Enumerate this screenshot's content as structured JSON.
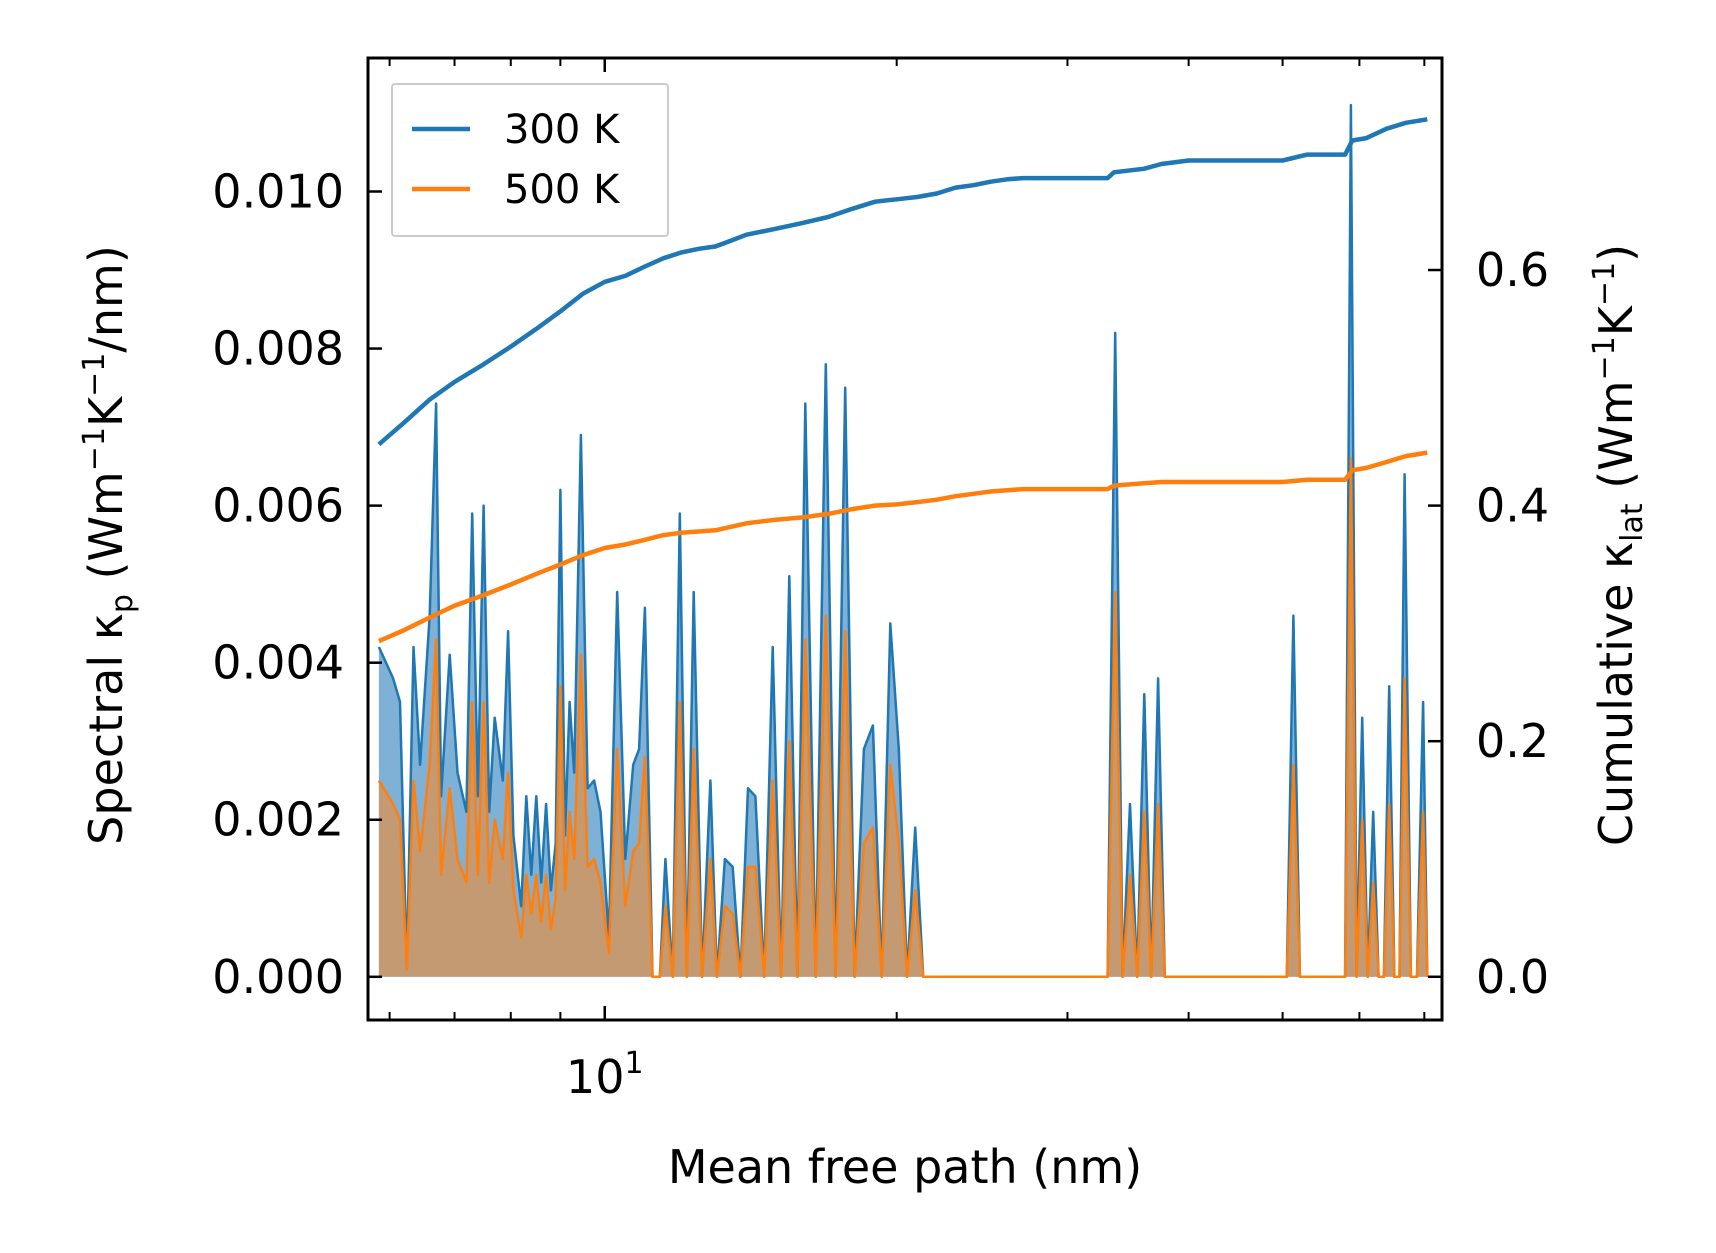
{
  "chart_data": {
    "type": "line",
    "xlabel": "Mean free path (nm)",
    "x_scale": "log",
    "xlim": [
      5.7,
      73
    ],
    "x_tick_labels": [
      {
        "value": 10,
        "base": "10",
        "exponent": "1"
      }
    ],
    "left_axis": {
      "label_parts": [
        "Spectral κ",
        "p",
        " (Wm",
        "−1",
        "K",
        "−1",
        "/nm)"
      ],
      "ylim": [
        -0.00055,
        0.0117
      ],
      "ticks": [
        "0.000",
        "0.002",
        "0.004",
        "0.006",
        "0.008",
        "0.010"
      ],
      "tick_values": [
        0,
        0.002,
        0.004,
        0.006,
        0.008,
        0.01
      ]
    },
    "right_axis": {
      "label_parts": [
        "Cumulative κ",
        "lat",
        " (Wm",
        "−1",
        "K",
        "−1",
        ")"
      ],
      "ylim": [
        -0.0367,
        0.78
      ],
      "ticks": [
        "0.0",
        "0.2",
        "0.4",
        "0.6"
      ],
      "tick_values": [
        0,
        0.2,
        0.4,
        0.6
      ]
    },
    "legend": {
      "position": "upper-left",
      "entries": [
        {
          "label": "300 K",
          "color": "#1f77b4"
        },
        {
          "label": "500 K",
          "color": "#ff7f0e"
        }
      ]
    },
    "colors": {
      "series_300": "#1f77b4",
      "series_500": "#ff7f0e",
      "fill_300": "#7fb0d6",
      "fill_500": "#c49a72"
    },
    "spectral_300": {
      "x": [
        5.85,
        6.05,
        6.15,
        6.25,
        6.35,
        6.45,
        6.6,
        6.7,
        6.78,
        6.92,
        7.05,
        7.2,
        7.3,
        7.4,
        7.5,
        7.6,
        7.7,
        7.85,
        7.95,
        8.05,
        8.2,
        8.3,
        8.4,
        8.5,
        8.6,
        8.7,
        8.8,
        8.9,
        9.0,
        9.1,
        9.2,
        9.3,
        9.45,
        9.6,
        9.75,
        9.9,
        10.1,
        10.3,
        10.5,
        10.7,
        10.85,
        11.0,
        11.2,
        11.4,
        11.55,
        11.75,
        11.95,
        12.15,
        12.35,
        12.6,
        12.85,
        13.05,
        13.3,
        13.55,
        13.8,
        14.05,
        14.3,
        14.6,
        14.9,
        15.2,
        15.5,
        15.8,
        16.1,
        16.5,
        16.9,
        17.3,
        17.7,
        18.1,
        18.5,
        18.9,
        19.3,
        19.7,
        20.1,
        20.5,
        20.9,
        21.3,
        21.7,
        22.2,
        22.6,
        23.0,
        23.4,
        23.8,
        24.2,
        24.7,
        25.2,
        25.7,
        26.2,
        26.7,
        27.2,
        27.8,
        28.4,
        29.0,
        33.0,
        33.6,
        34.2,
        34.8,
        35.4,
        36.0,
        36.6,
        37.2,
        37.8,
        38.4,
        39.0,
        50.5,
        51.3,
        52.1,
        58.0,
        58.8,
        59.6,
        60.4,
        61.2,
        62.0,
        62.8,
        63.6,
        64.4,
        65.2,
        66.0,
        66.8,
        67.8,
        68.8,
        69.8,
        70.5
      ],
      "y": [
        0.0042,
        0.0038,
        0.0035,
        0.0001,
        0.0042,
        0.0027,
        0.0046,
        0.0073,
        0.0023,
        0.0041,
        0.0026,
        0.0021,
        0.0059,
        0.0023,
        0.006,
        0.0021,
        0.0033,
        0.0025,
        0.0044,
        0.0018,
        0.0009,
        0.0023,
        0.0013,
        0.0023,
        0.0012,
        0.0022,
        0.0011,
        0.0017,
        0.0062,
        0.0018,
        0.0035,
        0.0026,
        0.0069,
        0.0024,
        0.0025,
        0.0021,
        0.0005,
        0.0049,
        0.0015,
        0.0027,
        0.0029,
        0.0047,
        0.0,
        0.0,
        0.0015,
        0.0,
        0.0059,
        0.0,
        0.0049,
        0.0,
        0.0025,
        0.0,
        0.0015,
        0.0014,
        0.0,
        0.0024,
        0.0023,
        0.0,
        0.0042,
        0.0,
        0.0051,
        0.0,
        0.0073,
        0.0,
        0.0078,
        0.0,
        0.0075,
        0.0,
        0.0029,
        0.0032,
        0.0,
        0.0045,
        0.0029,
        0.0,
        0.0019,
        0.0,
        0.0,
        0.0,
        0.0,
        0.0,
        0.0,
        0.0,
        0.0,
        0.0,
        0.0,
        0.0,
        0.0,
        0.0,
        0.0,
        0.0,
        0.0,
        0.0,
        0.0,
        0.0082,
        0.0,
        0.0022,
        0.0,
        0.0036,
        0.0,
        0.0038,
        0.0,
        0.0,
        0.0,
        0.0,
        0.0046,
        0.0,
        0.0,
        0.0111,
        0.0,
        0.0033,
        0.0,
        0.0021,
        0.0,
        0.0,
        0.0037,
        0.0,
        0.0,
        0.0064,
        0.0,
        0.0,
        0.0035,
        0.0
      ]
    },
    "spectral_500": {
      "x": [
        5.85,
        6.05,
        6.15,
        6.25,
        6.35,
        6.45,
        6.6,
        6.7,
        6.78,
        6.92,
        7.05,
        7.2,
        7.3,
        7.4,
        7.5,
        7.6,
        7.7,
        7.85,
        7.95,
        8.05,
        8.2,
        8.3,
        8.4,
        8.5,
        8.6,
        8.7,
        8.8,
        8.9,
        9.0,
        9.1,
        9.2,
        9.3,
        9.45,
        9.6,
        9.75,
        9.9,
        10.1,
        10.3,
        10.5,
        10.7,
        10.85,
        11.0,
        11.2,
        11.4,
        11.55,
        11.75,
        11.95,
        12.15,
        12.35,
        12.6,
        12.85,
        13.05,
        13.3,
        13.55,
        13.8,
        14.05,
        14.3,
        14.6,
        14.9,
        15.2,
        15.5,
        15.8,
        16.1,
        16.5,
        16.9,
        17.3,
        17.7,
        18.1,
        18.5,
        18.9,
        19.3,
        19.7,
        20.1,
        20.5,
        20.9,
        21.3,
        21.7,
        22.2,
        22.6,
        23.0,
        23.4,
        23.8,
        24.2,
        24.7,
        25.2,
        25.7,
        26.2,
        26.7,
        27.2,
        27.8,
        28.4,
        29.0,
        33.0,
        33.6,
        34.2,
        34.8,
        35.4,
        36.0,
        36.6,
        37.2,
        37.8,
        38.4,
        39.0,
        50.5,
        51.3,
        52.1,
        58.0,
        58.8,
        59.6,
        60.4,
        61.2,
        62.0,
        62.8,
        63.6,
        64.4,
        65.2,
        66.0,
        66.8,
        67.8,
        68.8,
        69.8,
        70.5
      ],
      "y": [
        0.0025,
        0.0022,
        0.002,
        0.0001,
        0.0025,
        0.0016,
        0.0027,
        0.0043,
        0.0013,
        0.0024,
        0.0015,
        0.0012,
        0.0035,
        0.0013,
        0.0035,
        0.0012,
        0.002,
        0.0015,
        0.0026,
        0.0011,
        0.0005,
        0.0013,
        0.0008,
        0.0013,
        0.0007,
        0.0013,
        0.0006,
        0.001,
        0.0037,
        0.0011,
        0.0021,
        0.0015,
        0.0041,
        0.0014,
        0.0015,
        0.0012,
        0.0003,
        0.0029,
        0.0009,
        0.0016,
        0.0017,
        0.0028,
        0.0,
        0.0,
        0.0009,
        0.0,
        0.0035,
        0.0,
        0.0029,
        0.0,
        0.0015,
        0.0,
        0.0009,
        0.0008,
        0.0,
        0.0014,
        0.0014,
        0.0,
        0.0025,
        0.0,
        0.003,
        0.0,
        0.0043,
        0.0,
        0.0046,
        0.0,
        0.0044,
        0.0,
        0.0017,
        0.0019,
        0.0,
        0.0027,
        0.0017,
        0.0,
        0.0011,
        0.0,
        0.0,
        0.0,
        0.0,
        0.0,
        0.0,
        0.0,
        0.0,
        0.0,
        0.0,
        0.0,
        0.0,
        0.0,
        0.0,
        0.0,
        0.0,
        0.0,
        0.0,
        0.0049,
        0.0,
        0.0013,
        0.0,
        0.0021,
        0.0,
        0.0022,
        0.0,
        0.0,
        0.0,
        0.0,
        0.0027,
        0.0,
        0.0,
        0.0066,
        0.0,
        0.002,
        0.0,
        0.0012,
        0.0,
        0.0,
        0.0022,
        0.0,
        0.0,
        0.0038,
        0.0,
        0.0,
        0.0021,
        0.0
      ]
    },
    "cumulative_300": {
      "x": [
        5.85,
        6.2,
        6.6,
        7.0,
        7.5,
        8.0,
        8.5,
        9.0,
        9.5,
        10.0,
        10.5,
        11.0,
        11.5,
        12.0,
        12.5,
        13.0,
        13.5,
        14.0,
        15.0,
        16.0,
        17.0,
        18.0,
        19.0,
        20.0,
        21.0,
        22.0,
        23.0,
        24.0,
        25.0,
        26.0,
        27.0,
        28.0,
        30.0,
        33.0,
        33.5,
        36.0,
        37.5,
        40.0,
        45.0,
        50.0,
        53.0,
        58.0,
        59.0,
        61.0,
        64.0,
        67.0,
        70.5
      ],
      "y": [
        0.452,
        0.47,
        0.49,
        0.505,
        0.52,
        0.535,
        0.55,
        0.565,
        0.58,
        0.59,
        0.595,
        0.603,
        0.61,
        0.615,
        0.618,
        0.62,
        0.625,
        0.63,
        0.635,
        0.64,
        0.645,
        0.652,
        0.658,
        0.66,
        0.662,
        0.665,
        0.67,
        0.672,
        0.675,
        0.677,
        0.678,
        0.678,
        0.678,
        0.678,
        0.683,
        0.686,
        0.69,
        0.693,
        0.693,
        0.693,
        0.698,
        0.698,
        0.71,
        0.712,
        0.72,
        0.725,
        0.728
      ]
    },
    "cumulative_500": {
      "x": [
        5.85,
        6.2,
        6.6,
        7.0,
        7.5,
        8.0,
        8.5,
        9.0,
        9.5,
        10.0,
        10.5,
        11.0,
        11.5,
        12.0,
        12.5,
        13.0,
        13.5,
        14.0,
        15.0,
        16.0,
        17.0,
        18.0,
        19.0,
        20.0,
        21.0,
        22.0,
        23.0,
        24.0,
        25.0,
        26.0,
        27.0,
        28.0,
        30.0,
        33.0,
        33.5,
        36.0,
        37.5,
        40.0,
        45.0,
        50.0,
        53.0,
        58.0,
        59.0,
        61.0,
        64.0,
        67.0,
        70.5
      ],
      "y": [
        0.285,
        0.294,
        0.305,
        0.315,
        0.324,
        0.333,
        0.342,
        0.35,
        0.358,
        0.364,
        0.367,
        0.371,
        0.375,
        0.377,
        0.378,
        0.379,
        0.382,
        0.385,
        0.388,
        0.39,
        0.393,
        0.397,
        0.4,
        0.401,
        0.403,
        0.405,
        0.408,
        0.41,
        0.412,
        0.413,
        0.414,
        0.414,
        0.414,
        0.414,
        0.417,
        0.419,
        0.42,
        0.42,
        0.42,
        0.42,
        0.422,
        0.422,
        0.43,
        0.432,
        0.437,
        0.442,
        0.445
      ]
    }
  }
}
